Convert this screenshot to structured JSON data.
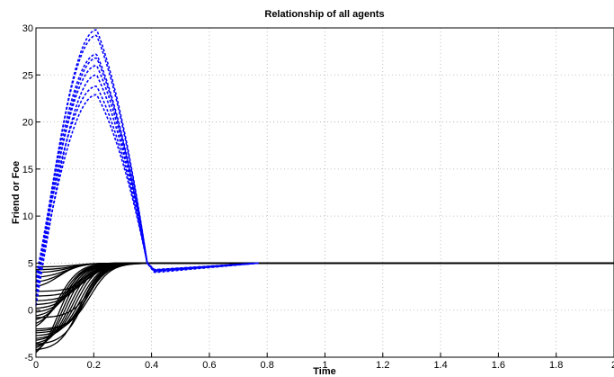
{
  "chart_data": {
    "type": "line",
    "title": "Relationship of all agents",
    "xlabel": "Time",
    "ylabel": "Friend or Foe",
    "xlim": [
      0,
      2
    ],
    "ylim": [
      -5,
      30
    ],
    "grid": true,
    "x_ticks": [
      "0",
      "0.2",
      "0.4",
      "0.6",
      "0.8",
      "1",
      "1.2",
      "1.4",
      "1.6",
      "1.8",
      "2"
    ],
    "y_ticks": [
      "-5",
      "0",
      "5",
      "10",
      "15",
      "20",
      "25",
      "30"
    ],
    "colors": {
      "foe_series": "#0000ff",
      "friend_series": "#000000"
    },
    "foe_series": {
      "style": "dashed",
      "color": "#0000ff",
      "x": [
        0,
        0.02,
        0.05,
        0.1,
        0.15,
        0.2,
        0.22,
        0.25,
        0.3,
        0.35,
        0.39,
        0.4,
        0.42,
        0.5,
        0.6,
        0.7,
        0.77
      ],
      "peaks": [
        29.8,
        29.2,
        27.2,
        26.8,
        26.0,
        25.0,
        23.8,
        22.9
      ],
      "start_values": [
        1.0,
        2.0,
        3.0,
        1.5,
        2.5,
        0.5,
        3.5,
        2.0
      ],
      "dip_values": [
        4.0,
        4.2,
        4.3,
        4.1,
        4.2,
        4.3,
        4.25,
        4.15
      ]
    },
    "friend_series": {
      "style": "solid",
      "color": "#000000",
      "x_end": 2,
      "final_value": 5,
      "start_values": [
        -4.5,
        -4.3,
        -4.0,
        -3.8,
        -3.5,
        -3.2,
        -3.0,
        -2.7,
        -2.4,
        -2.0,
        -1.7,
        -1.4,
        -1.0,
        -0.6,
        -0.2,
        0.2,
        0.6,
        1.0,
        1.5,
        2.0,
        2.5,
        3.0,
        3.5,
        4.0,
        4.3,
        4.6,
        -4.2,
        -3.6,
        -2.2,
        -0.8
      ]
    }
  }
}
